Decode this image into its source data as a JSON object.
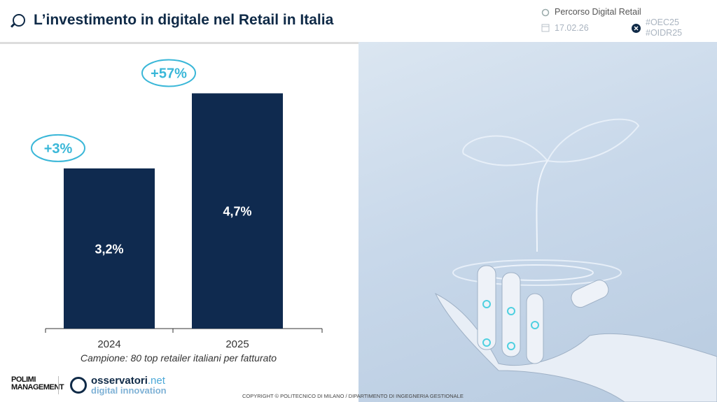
{
  "header": {
    "title": "L’investimento in digitale nel Retail in Italia",
    "path_label": "Percorso Digital Retail",
    "date": "17.02.26",
    "hashtag1": "#OEC25",
    "hashtag2": "#OIDR25"
  },
  "footer": {
    "logo_polimi_line1": "POLIMI",
    "logo_polimi_line2": "MANAGEMENT",
    "logo_oss_name": "osservatori",
    "logo_oss_tld": ".net",
    "logo_oss_sub": "digital innovation",
    "copyright": "COPYRIGHT © POLITECNICO DI MILANO / DIPARTIMENTO DI INGEGNERIA GESTIONALE"
  },
  "colors": {
    "bar": "#0f2a4f",
    "accent": "#3ab7d8",
    "title": "#0f2a47"
  },
  "chart_data": {
    "type": "bar",
    "categories": [
      "2024",
      "2025"
    ],
    "values": [
      3.2,
      4.7
    ],
    "data_labels": [
      "3,2%",
      "4,7%"
    ],
    "growth_labels": [
      "+3%",
      "+57%"
    ],
    "note": "Campione: 80 top retailer italiani per fatturato",
    "ylim": [
      0,
      5.7
    ],
    "grid": false
  }
}
